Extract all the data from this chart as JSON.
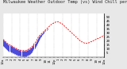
{
  "title": "Milwaukee Weather Outdoor Temp (vs) Wind Chill per Minute (Last 24 Hours)",
  "bg_color": "#e8e8e8",
  "plot_bg_color": "#ffffff",
  "outer_temp_color": "#ff0000",
  "wind_chill_color": "#0000cc",
  "title_fontsize": 3.8,
  "tick_fontsize": 3.0,
  "ylim": [
    0,
    55
  ],
  "yticks": [
    5,
    10,
    15,
    20,
    25,
    30,
    35,
    40,
    45,
    50
  ],
  "outer_temp_y": [
    22,
    21,
    20,
    19,
    18,
    17,
    16,
    15,
    15,
    14,
    14,
    13,
    12,
    12,
    11,
    11,
    10,
    10,
    9,
    9,
    9,
    8,
    8,
    8,
    8,
    8,
    8,
    8,
    9,
    9,
    10,
    10,
    11,
    12,
    13,
    14,
    16,
    17,
    18,
    20,
    22,
    24,
    26,
    27,
    28,
    29,
    30,
    31,
    32,
    33,
    34,
    35,
    36,
    37,
    38,
    39,
    40,
    41,
    42,
    42,
    43,
    43,
    44,
    44,
    44,
    44,
    43,
    43,
    42,
    42,
    41,
    40,
    39,
    38,
    37,
    36,
    35,
    34,
    33,
    32,
    31,
    30,
    29,
    28,
    27,
    26,
    25,
    24,
    23,
    22,
    21,
    20,
    19,
    19,
    18,
    18,
    17,
    17,
    17,
    17,
    17,
    18,
    18,
    19,
    19,
    20,
    20,
    21,
    21,
    22,
    22,
    23,
    23,
    24,
    24,
    25,
    25,
    26,
    26,
    27
  ],
  "wind_chill_y": [
    14,
    13,
    12,
    11,
    10,
    9,
    8,
    7,
    7,
    6,
    6,
    5,
    5,
    4,
    4,
    3,
    3,
    2,
    2,
    2,
    2,
    1,
    1,
    1,
    1,
    1,
    1,
    1,
    2,
    2,
    3,
    3,
    4,
    5,
    6,
    8,
    10,
    11,
    13,
    15,
    17,
    19,
    21,
    23,
    25,
    26,
    28,
    29,
    30,
    32,
    33,
    34,
    35,
    37,
    38,
    39,
    40,
    41,
    42,
    42,
    43,
    43,
    44,
    44,
    44,
    44,
    43,
    43,
    42,
    42,
    41,
    40,
    39,
    38,
    37,
    36,
    35,
    34,
    33,
    32,
    31,
    30,
    29,
    28,
    27,
    26,
    25,
    24,
    23,
    22,
    21,
    20,
    19,
    19,
    18,
    18,
    17,
    17,
    17,
    17,
    17,
    18,
    18,
    19,
    19,
    20,
    20,
    21,
    21,
    22,
    22,
    23,
    23,
    24,
    24,
    25,
    25,
    26,
    26,
    27
  ],
  "n_points": 120,
  "xtick_positions": [
    0,
    5,
    10,
    15,
    20,
    25,
    30,
    35,
    40,
    45,
    50,
    55,
    60,
    65,
    70,
    75,
    80,
    85,
    90,
    95,
    100,
    105,
    110,
    115,
    119
  ],
  "xtick_labels": [
    "12a",
    "1",
    "2",
    "3",
    "4",
    "5",
    "6",
    "7",
    "8",
    "9",
    "10",
    "11",
    "12p",
    "1",
    "2",
    "3",
    "4",
    "5",
    "6",
    "7",
    "8",
    "9",
    "10",
    "11",
    "12a"
  ],
  "vgrid_positions": [
    0,
    10,
    20,
    30,
    40,
    50,
    60,
    70,
    80,
    90,
    100,
    110,
    119
  ]
}
